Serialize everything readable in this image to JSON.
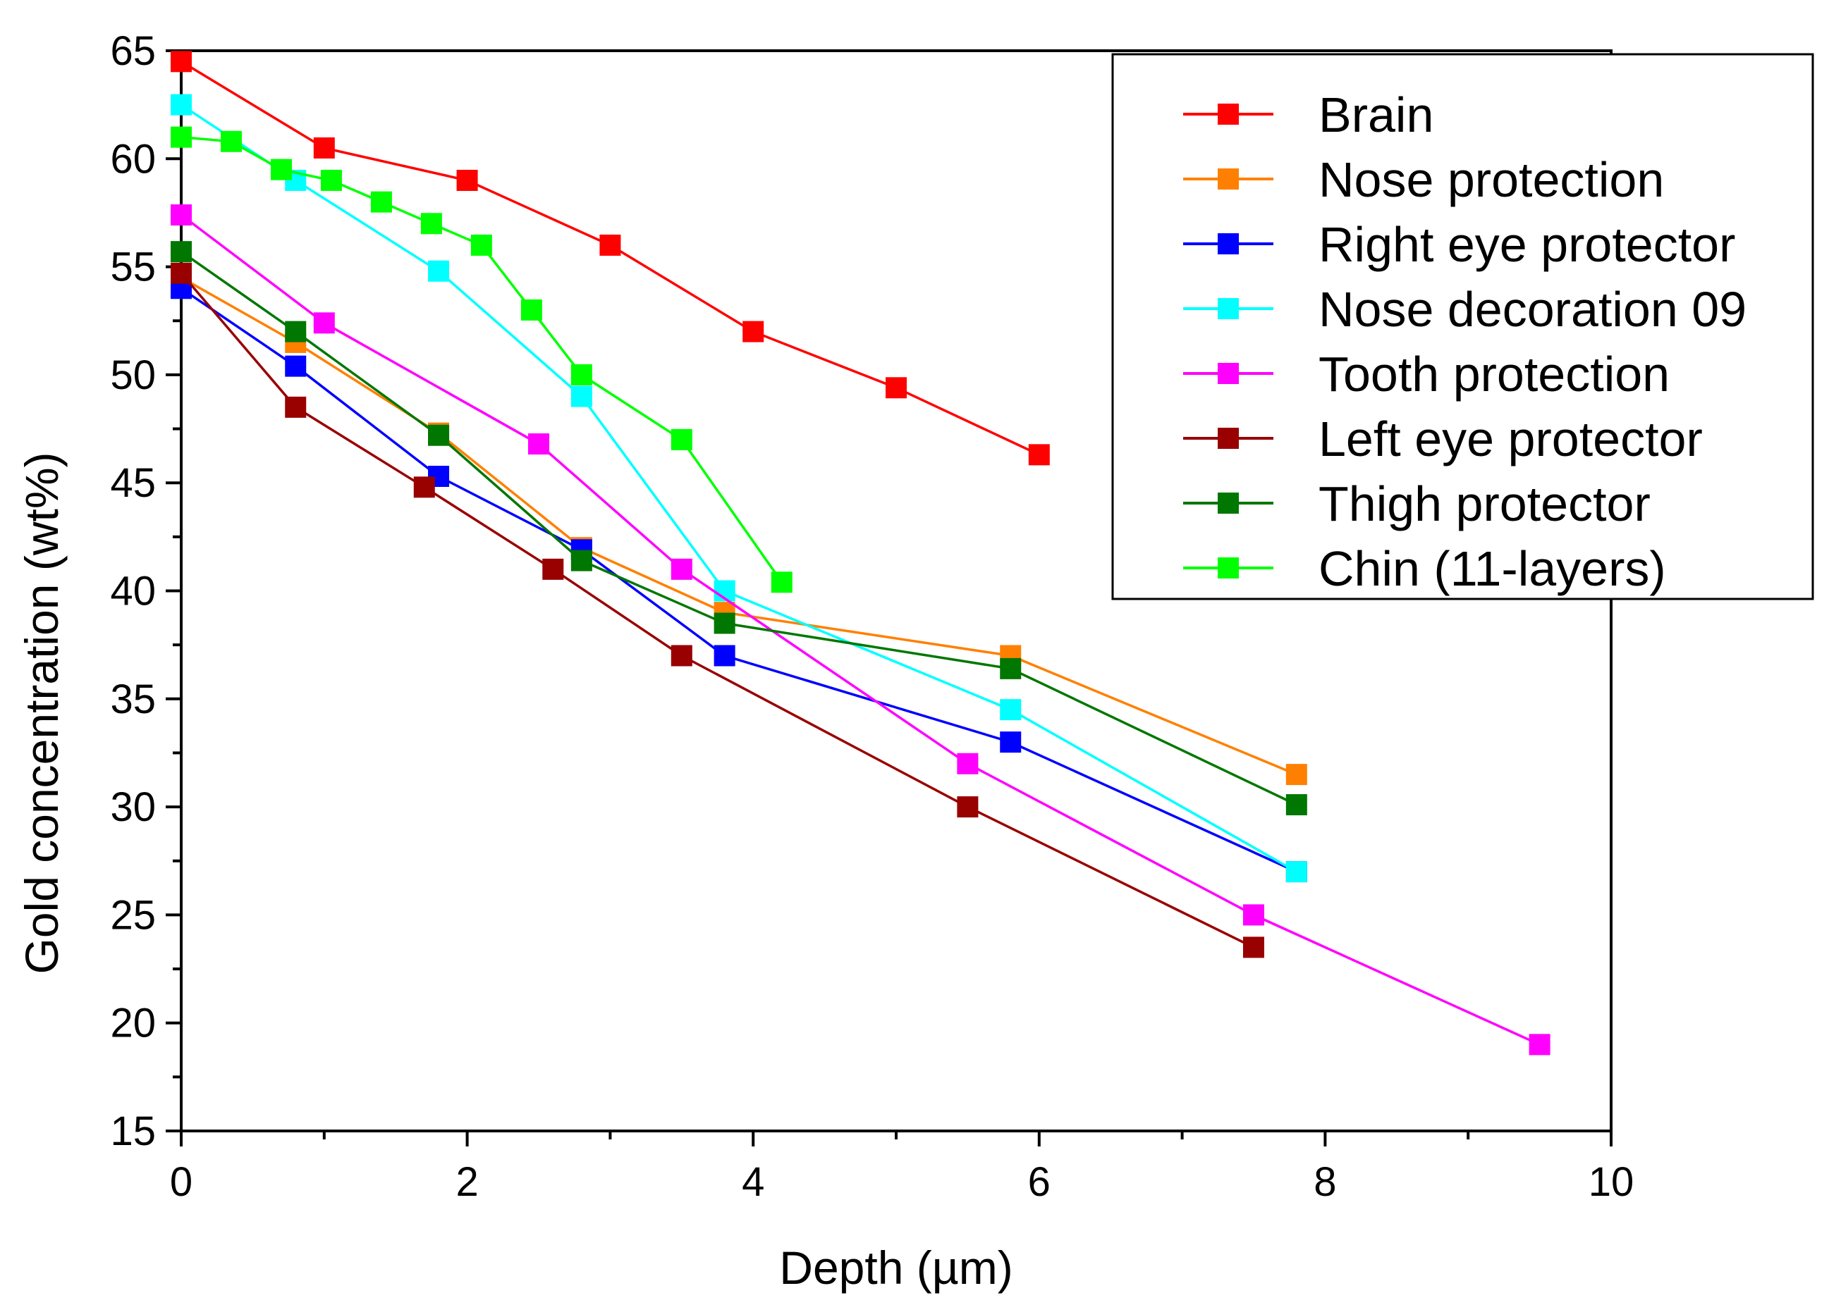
{
  "chart_data": {
    "type": "line",
    "title": "",
    "xlabel": "Depth (µm)",
    "ylabel": "Gold concentration (wt%)",
    "xlim": [
      0,
      10
    ],
    "ylim": [
      15,
      65
    ],
    "xticks": [
      0,
      2,
      4,
      6,
      8,
      10
    ],
    "yticks": [
      15,
      20,
      25,
      30,
      35,
      40,
      45,
      50,
      55,
      60,
      65
    ],
    "xtick_labels": [
      "0",
      "2",
      "4",
      "6",
      "8",
      "10"
    ],
    "ytick_labels": [
      "15",
      "20",
      "25",
      "30",
      "35",
      "40",
      "45",
      "50",
      "55",
      "60",
      "65"
    ],
    "grid": false,
    "legend_position": "top-right",
    "series": [
      {
        "name": "Brain",
        "color": "#ff0000",
        "x": [
          0,
          1,
          2,
          3,
          4,
          5,
          6
        ],
        "y": [
          64.5,
          60.5,
          59,
          56,
          52,
          49.4,
          46.3
        ]
      },
      {
        "name": "Nose protection",
        "color": "#ff8000",
        "x": [
          0,
          0.8,
          1.8,
          2.8,
          3.8,
          5.8,
          7.8
        ],
        "y": [
          54.5,
          51.5,
          47.3,
          42,
          39,
          37,
          31.5
        ]
      },
      {
        "name": "Right eye protector",
        "color": "#0000ff",
        "x": [
          0,
          0.8,
          1.8,
          2.8,
          3.8,
          5.8,
          7.8
        ],
        "y": [
          54,
          50.4,
          45.3,
          41.9,
          37,
          33,
          27
        ]
      },
      {
        "name": "Nose decoration 09",
        "color": "#00ffff",
        "x": [
          0,
          0.8,
          1.8,
          2.8,
          3.8,
          5.8,
          7.8
        ],
        "y": [
          62.5,
          59,
          54.8,
          49,
          40,
          34.5,
          27
        ]
      },
      {
        "name": "Tooth protection",
        "color": "#ff00ff",
        "x": [
          0,
          1,
          2.5,
          3.5,
          5.5,
          7.5,
          9.5
        ],
        "y": [
          57.4,
          52.4,
          46.8,
          41,
          32,
          25,
          19
        ]
      },
      {
        "name": "Left eye protector",
        "color": "#990000",
        "x": [
          0,
          0.8,
          1.7,
          2.6,
          3.5,
          5.5,
          7.5
        ],
        "y": [
          54.7,
          48.5,
          44.8,
          41,
          37,
          30,
          23.5
        ]
      },
      {
        "name": "Thigh protector",
        "color": "#007700",
        "x": [
          0,
          0.8,
          1.8,
          2.8,
          3.8,
          5.8,
          7.8
        ],
        "y": [
          55.7,
          52,
          47.2,
          41.4,
          38.5,
          36.4,
          30.1
        ]
      },
      {
        "name": "Chin (11-layers)",
        "color": "#00ff00",
        "x": [
          0,
          0.35,
          0.7,
          1.05,
          1.4,
          1.75,
          2.1,
          2.45,
          2.8,
          3.5,
          4.2
        ],
        "y": [
          61,
          60.8,
          59.5,
          59,
          58,
          57,
          56,
          53,
          50,
          47,
          40.4
        ]
      }
    ]
  }
}
